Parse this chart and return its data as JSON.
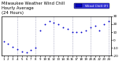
{
  "title_line1": "Milwaukee Weather Wind Chill",
  "title_line2": "Hourly Average",
  "title_line3": "(24 Hours)",
  "title_fontsize": 3.8,
  "background_color": "#ffffff",
  "plot_bg_color": "#ffffff",
  "dot_color": "#0000cd",
  "legend_bg": "#0000cd",
  "legend_text_color": "#ffffff",
  "grid_color": "#8888aa",
  "hours": [
    1,
    2,
    3,
    4,
    5,
    6,
    7,
    8,
    9,
    10,
    11,
    12,
    13,
    14,
    15,
    16,
    17,
    18,
    19,
    20,
    21,
    22,
    23,
    24
  ],
  "wind_chill": [
    -2,
    -5,
    -9,
    -12,
    -15,
    -16,
    -13,
    -10,
    12,
    20,
    24,
    22,
    20,
    16,
    14,
    10,
    10,
    10,
    12,
    16,
    18,
    12,
    20,
    24
  ],
  "ylim": [
    -20,
    30
  ],
  "ytick_values": [
    -20,
    -10,
    0,
    10,
    20,
    30
  ],
  "ytick_labels": [
    "-20",
    "-10",
    "0",
    "10",
    "20",
    "30"
  ],
  "marker_size": 1.8,
  "tick_fontsize": 3.0,
  "vline_positions": [
    4,
    8,
    12,
    16,
    20,
    24
  ],
  "legend_label": "Wind Chill (F)",
  "legend_fontsize": 3.2,
  "figsize": [
    1.6,
    0.87
  ],
  "dpi": 100
}
